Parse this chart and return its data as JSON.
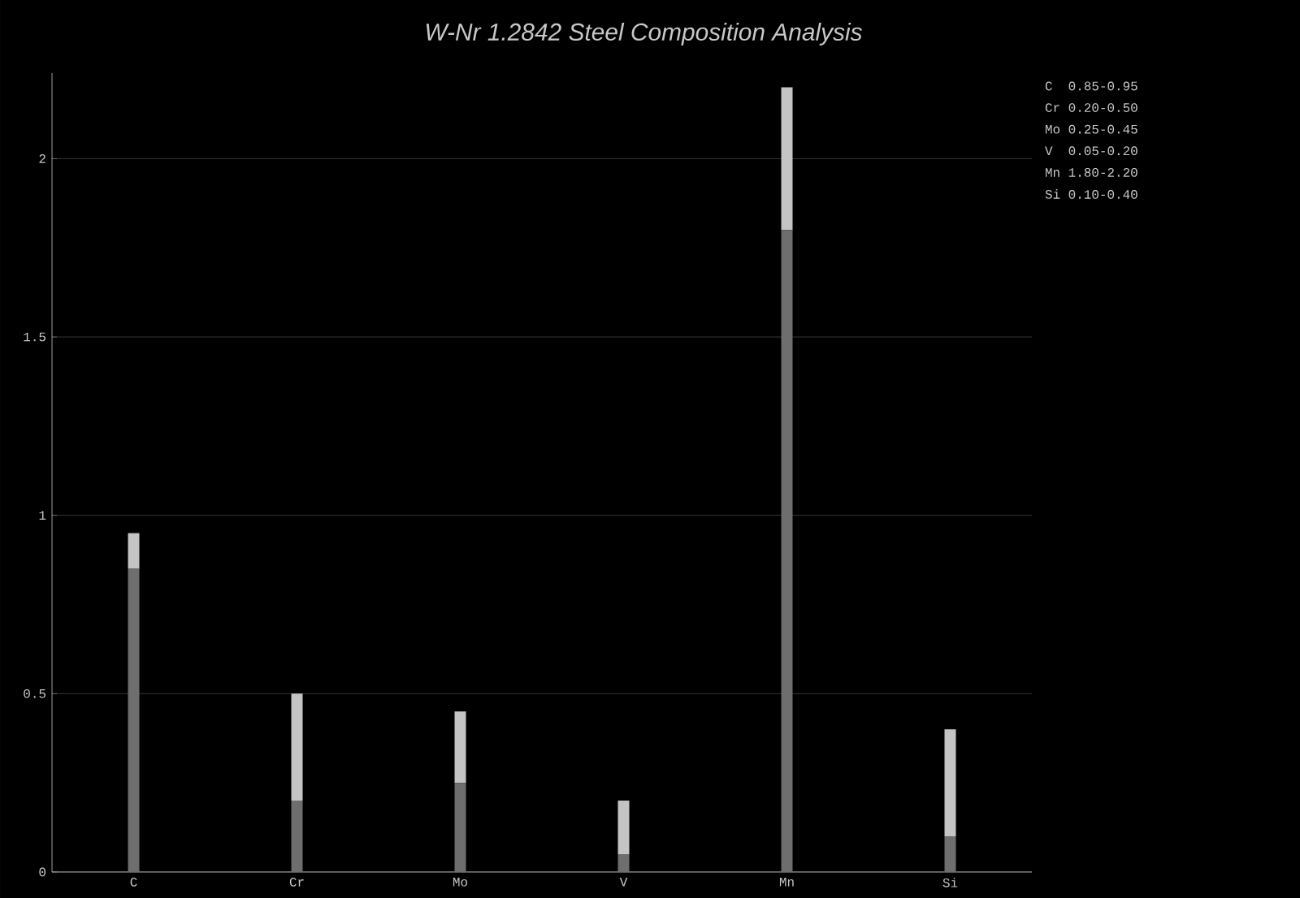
{
  "chart_data": {
    "type": "bar",
    "title": "W-Nr 1.2842 Steel Composition Analysis",
    "categories": [
      "C",
      "Cr",
      "Mo",
      "V",
      "Mn",
      "Si"
    ],
    "stacked": true,
    "series": [
      {
        "color": "#6e6e6e",
        "values": [
          0.85,
          0.2,
          0.25,
          0.05,
          1.8,
          0.1
        ]
      },
      {
        "color": "#c4c4c4",
        "values": [
          0.1,
          0.3,
          0.2,
          0.15,
          0.4,
          0.3
        ]
      }
    ],
    "ylim": [
      0,
      2.24
    ],
    "yticks": [
      0,
      0.5,
      1,
      1.5,
      2
    ],
    "grid": "y",
    "annotations": [
      "C  0.85-0.95",
      "Cr 0.20-0.50",
      "Mo 0.25-0.45",
      "V  0.05-0.20",
      "Mn 1.80-2.20",
      "Si 0.10-0.40"
    ]
  }
}
